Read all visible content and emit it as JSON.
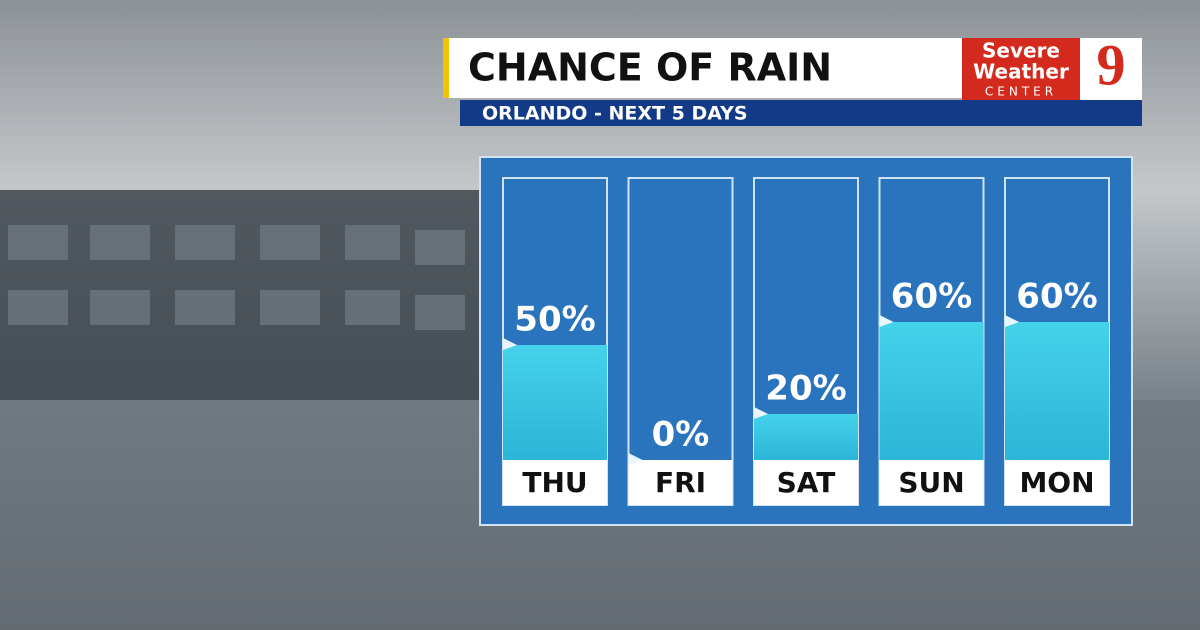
{
  "chart_data": {
    "type": "bar",
    "title": "CHANCE OF RAIN",
    "subtitle": "ORLANDO - NEXT 5 DAYS",
    "categories": [
      "THU",
      "FRI",
      "SAT",
      "SUN",
      "MON"
    ],
    "values": [
      50,
      0,
      20,
      60,
      60
    ],
    "value_labels": [
      "50%",
      "0%",
      "20%",
      "60%",
      "60%"
    ],
    "color": "#36c3de",
    "ylim": [
      0,
      100
    ]
  },
  "logo": {
    "line1": "Severe",
    "line2": "Weather",
    "line3": "CENTER",
    "number": "9"
  }
}
